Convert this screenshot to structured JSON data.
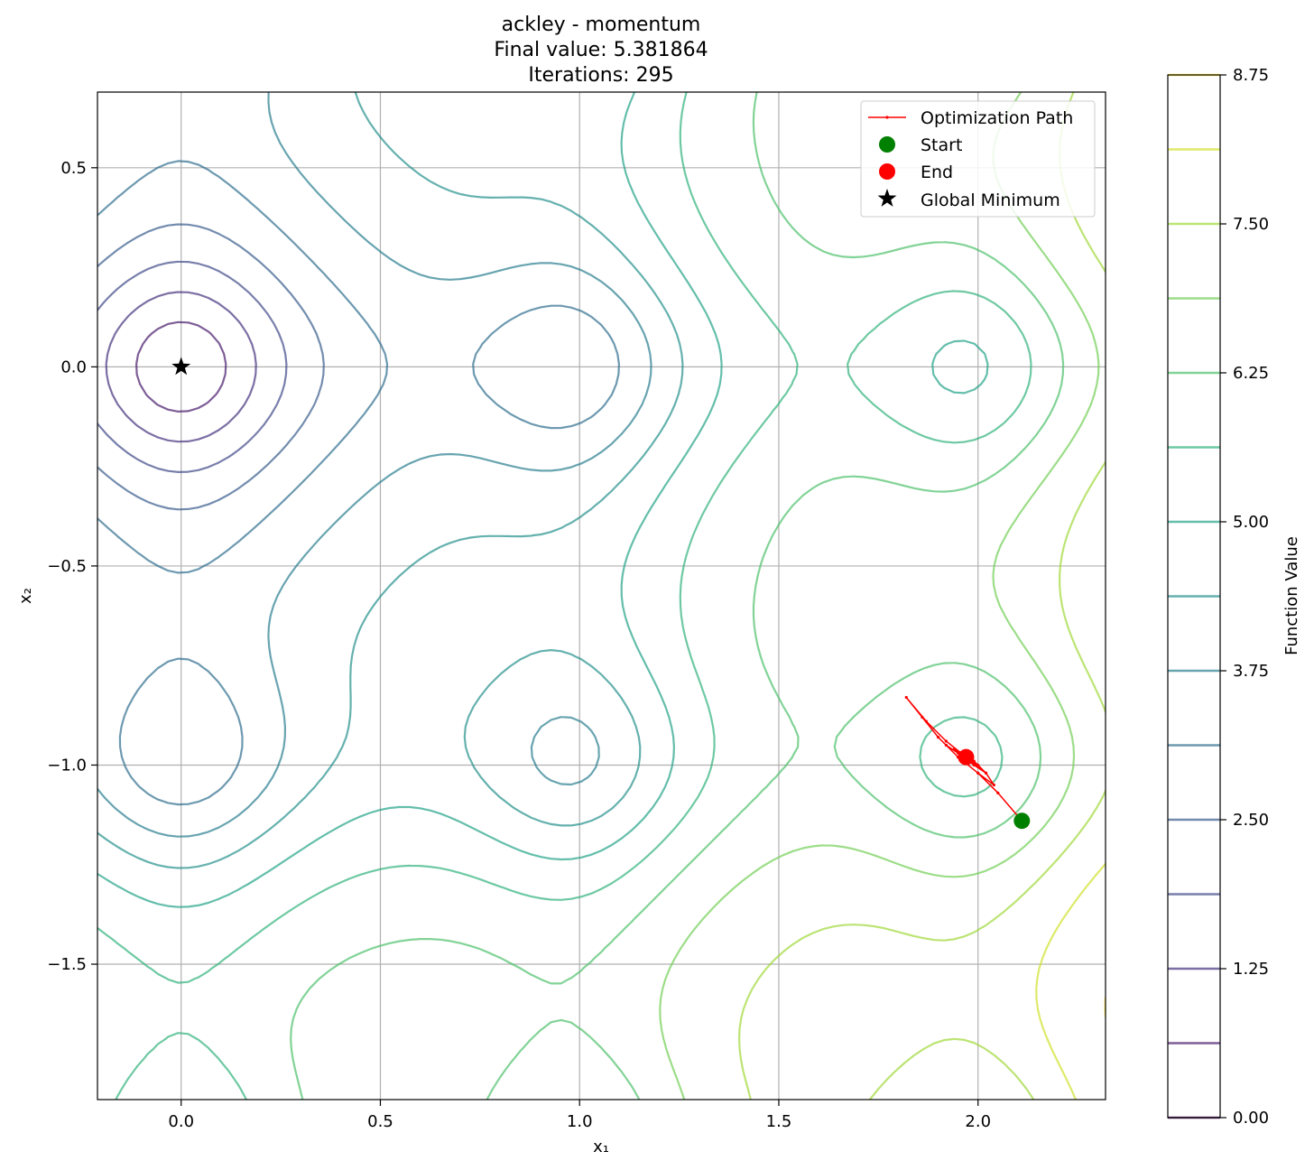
{
  "chart_data": {
    "type": "contour",
    "title_lines": [
      "ackley - momentum",
      "Final value: 5.381864",
      "Iterations: 295"
    ],
    "xlabel": "x₁",
    "ylabel": "x₂",
    "xlim": [
      -0.21,
      2.32
    ],
    "ylim": [
      -1.84,
      0.69
    ],
    "x_ticks": [
      0.0,
      0.5,
      1.0,
      1.5,
      2.0
    ],
    "x_tick_labels": [
      "0.0",
      "0.5",
      "1.0",
      "1.5",
      "2.0"
    ],
    "y_ticks": [
      -1.5,
      -1.0,
      -0.5,
      0.0,
      0.5
    ],
    "y_tick_labels": [
      "−1.5",
      "−1.0",
      "−0.5",
      "0.0",
      "0.5"
    ],
    "grid": true,
    "function": "ackley",
    "contour_levels": [
      0.0,
      0.625,
      1.25,
      1.875,
      2.5,
      3.125,
      3.75,
      4.375,
      5.0,
      5.625,
      6.25,
      6.875,
      7.5,
      8.125,
      8.75
    ],
    "colormap": "viridis",
    "contour_alpha": 0.7,
    "colorbar": {
      "label": "Function Value",
      "ticks": [
        0.0,
        1.25,
        2.5,
        3.75,
        5.0,
        6.25,
        7.5,
        8.75
      ],
      "tick_labels": [
        "0.00",
        "1.25",
        "2.50",
        "3.75",
        "5.00",
        "6.25",
        "7.50",
        "8.75"
      ],
      "range": [
        0.0,
        8.75
      ]
    },
    "series": [
      {
        "name": "Optimization Path",
        "type": "line",
        "color": "#ff0000",
        "x": [
          2.11,
          2.05,
          2.0,
          1.95,
          1.9,
          1.86,
          1.82,
          1.87,
          1.92,
          1.97,
          2.02,
          2.04,
          2.0,
          1.95,
          1.92,
          1.95,
          1.99,
          2.02,
          1.99,
          1.96,
          1.94,
          1.96,
          1.98,
          2.0,
          1.98,
          1.96,
          1.95,
          1.97,
          1.98,
          1.965,
          1.96,
          1.97
        ],
        "y": [
          -1.14,
          -1.07,
          -1.02,
          -0.98,
          -0.93,
          -0.88,
          -0.83,
          -0.89,
          -0.94,
          -0.98,
          -1.02,
          -1.05,
          -1.02,
          -0.98,
          -0.95,
          -0.97,
          -1.0,
          -1.02,
          -0.99,
          -0.97,
          -0.96,
          -0.98,
          -0.99,
          -1.0,
          -0.98,
          -0.97,
          -0.98,
          -0.99,
          -0.985,
          -0.975,
          -0.98,
          -0.98
        ]
      },
      {
        "name": "Start",
        "type": "point",
        "color": "#008000",
        "x": 2.11,
        "y": -1.14
      },
      {
        "name": "End",
        "type": "point",
        "color": "#ff0000",
        "x": 1.97,
        "y": -0.98
      },
      {
        "name": "Global Minimum",
        "type": "star",
        "color": "#000000",
        "x": 0.0,
        "y": 0.0
      }
    ],
    "legend_position": "upper right"
  }
}
